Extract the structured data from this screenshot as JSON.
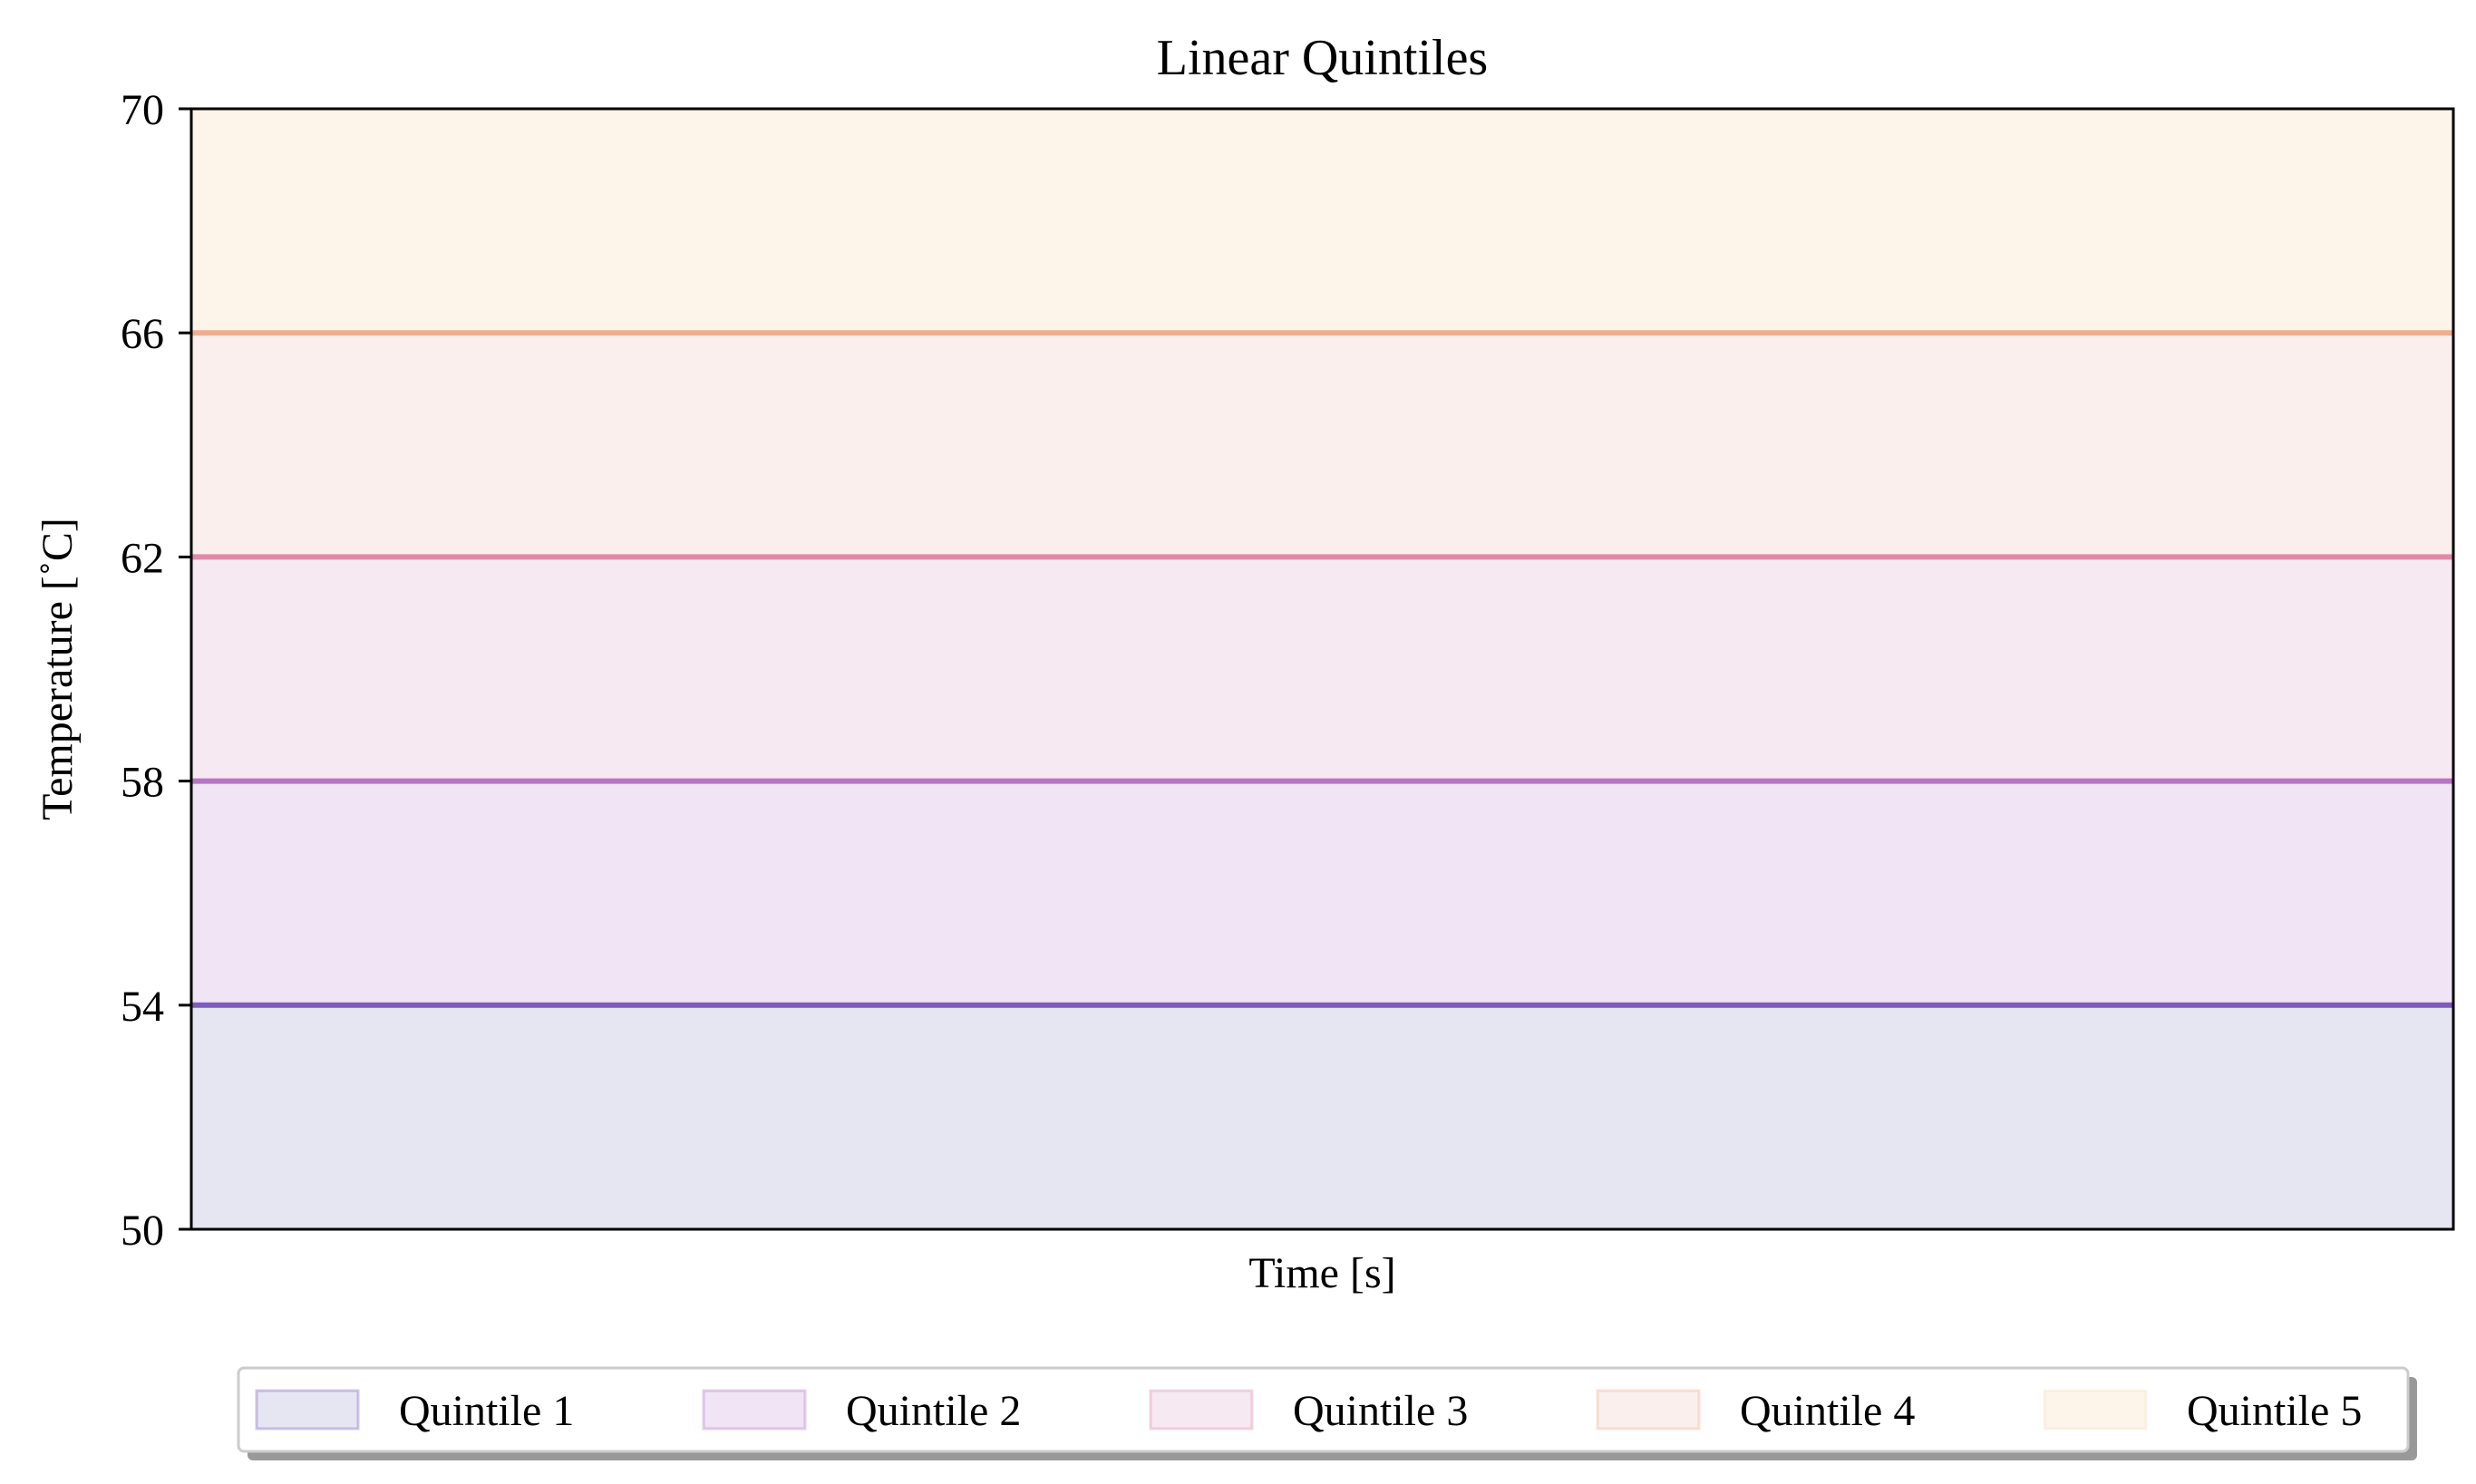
{
  "chart_data": {
    "type": "area",
    "title": "Linear Quintiles",
    "xlabel": "Time [s]",
    "ylabel": "Temperature [$^\\circ$C]",
    "ylabel_display": "Temperature [˚C]",
    "ylim": [
      50,
      70
    ],
    "yticks": [
      "50",
      "54",
      "58",
      "62",
      "66",
      "70"
    ],
    "xticks": [],
    "grid": false,
    "legend_position": "bottom-center",
    "series": [
      {
        "name": "Quintile 1",
        "lower": 50,
        "upper": 54,
        "fill": "#e6e6f2",
        "line": "#7e5bbf"
      },
      {
        "name": "Quintile 2",
        "lower": 54,
        "upper": 58,
        "fill": "#f0e4f5",
        "line": "#b874c6"
      },
      {
        "name": "Quintile 3",
        "lower": 58,
        "upper": 62,
        "fill": "#f6e9f1",
        "line": "#e08aa8"
      },
      {
        "name": "Quintile 4",
        "lower": 62,
        "upper": 66,
        "fill": "#faefec",
        "line": "#f2ae8c"
      },
      {
        "name": "Quintile 5",
        "lower": 66,
        "upper": 70,
        "fill": "#fdf5ea",
        "line": null
      }
    ]
  }
}
